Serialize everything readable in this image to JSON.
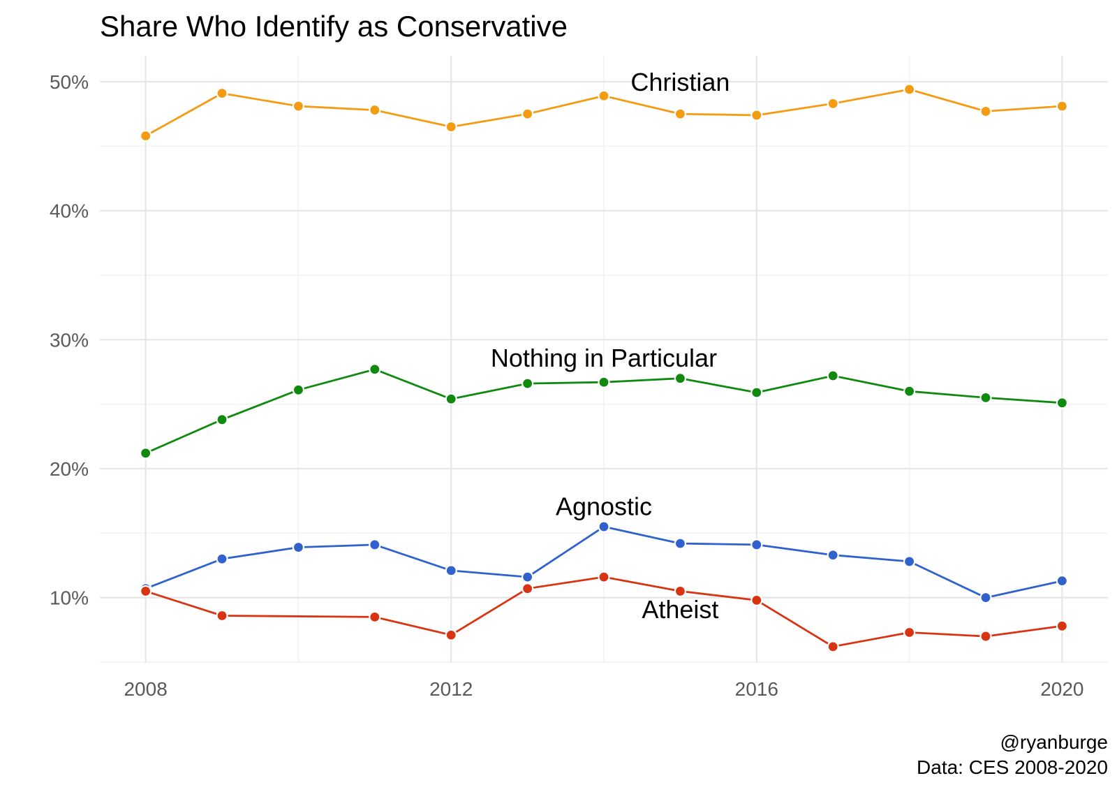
{
  "chart_data": {
    "type": "line",
    "title": "Share Who Identify as Conservative",
    "xlabel": "",
    "ylabel": "",
    "x": [
      2008,
      2009,
      2010,
      2011,
      2012,
      2013,
      2014,
      2015,
      2016,
      2017,
      2018,
      2019,
      2020
    ],
    "xticks": [
      2008,
      2012,
      2016,
      2020
    ],
    "xtick_labels": [
      "2008",
      "2012",
      "2016",
      "2020"
    ],
    "xlim": [
      2007.4,
      2020.6
    ],
    "ylim": [
      0.05,
      0.52
    ],
    "yticks": [
      0.1,
      0.2,
      0.3,
      0.4,
      0.5
    ],
    "ytick_labels": [
      "10%",
      "20%",
      "30%",
      "40%",
      "50%"
    ],
    "grid": true,
    "legend": "direct labels",
    "series": [
      {
        "name": "Christian",
        "color": "#f39c12",
        "label_x": 2015,
        "label_y": 0.493,
        "values": [
          0.458,
          0.491,
          0.481,
          0.478,
          0.465,
          0.475,
          0.489,
          0.475,
          0.474,
          0.483,
          0.494,
          0.477,
          0.481
        ]
      },
      {
        "name": "Nothing in Particular",
        "color": "#0f8a0f",
        "label_x": 2014,
        "label_y": 0.279,
        "values": [
          0.212,
          0.238,
          0.261,
          0.277,
          0.254,
          0.266,
          0.267,
          0.27,
          0.259,
          0.272,
          0.26,
          0.255,
          0.251
        ]
      },
      {
        "name": "Agnostic",
        "color": "#2f62cc",
        "label_x": 2014,
        "label_y": 0.164,
        "values": [
          0.107,
          0.13,
          0.139,
          0.141,
          0.121,
          0.116,
          0.155,
          0.142,
          0.141,
          0.133,
          0.128,
          0.1,
          0.113
        ]
      },
      {
        "name": "Atheist",
        "color": "#d93412",
        "label_x": 2015,
        "label_y": 0.084,
        "values": [
          0.105,
          0.086,
          null,
          0.085,
          0.071,
          0.107,
          0.116,
          0.105,
          0.098,
          0.062,
          0.073,
          0.07,
          0.078
        ]
      }
    ],
    "caption": [
      "@ryanburge",
      "Data: CES 2008-2020"
    ]
  }
}
